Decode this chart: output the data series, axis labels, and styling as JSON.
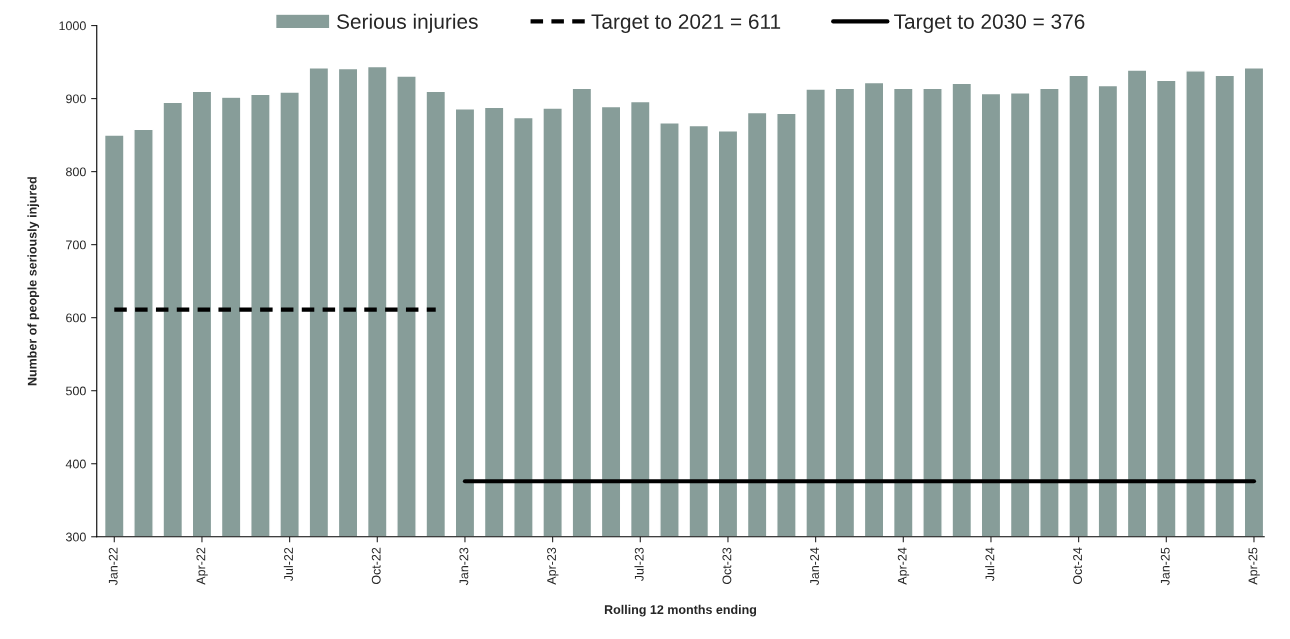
{
  "chart_data": {
    "type": "bar",
    "xlabel": "Rolling 12 months ending",
    "ylabel": "Number of people seriously injured",
    "categories": [
      "Jan-22",
      null,
      null,
      "Apr-22",
      null,
      null,
      "Jul-22",
      null,
      null,
      "Oct-22",
      null,
      null,
      "Jan-23",
      null,
      null,
      "Apr-23",
      null,
      null,
      "Jul-23",
      null,
      null,
      "Oct-23",
      null,
      null,
      "Jan-24",
      null,
      null,
      "Apr-24",
      null,
      null,
      "Jul-24",
      null,
      null,
      "Oct-24",
      null,
      null,
      "Jan-25",
      null,
      null,
      "Apr-25"
    ],
    "series": [
      {
        "name": "Serious injuries",
        "color": "#879d99",
        "values": [
          850,
          858,
          895,
          910,
          902,
          906,
          909,
          942,
          941,
          944,
          931,
          910,
          886,
          888,
          874,
          887,
          914,
          889,
          896,
          867,
          863,
          856,
          881,
          880,
          913,
          914,
          922,
          914,
          914,
          921,
          907,
          908,
          914,
          932,
          918,
          939,
          925,
          938,
          932,
          942
        ]
      },
      {
        "name": "Target to 2021 = 611",
        "type": "line",
        "line_style": "dashed",
        "color": "#000000",
        "values": [
          611,
          611,
          611,
          611,
          611,
          611,
          611,
          611,
          611,
          611,
          611,
          611,
          null,
          null,
          null,
          null,
          null,
          null,
          null,
          null,
          null,
          null,
          null,
          null,
          null,
          null,
          null,
          null,
          null,
          null,
          null,
          null,
          null,
          null,
          null,
          null,
          null,
          null,
          null,
          null
        ]
      },
      {
        "name": "Target to 2030 = 376",
        "type": "line",
        "line_style": "solid",
        "color": "#000000",
        "values": [
          null,
          null,
          null,
          null,
          null,
          null,
          null,
          null,
          null,
          null,
          null,
          null,
          376,
          376,
          376,
          376,
          376,
          376,
          376,
          376,
          376,
          376,
          376,
          376,
          376,
          376,
          376,
          376,
          376,
          376,
          376,
          376,
          376,
          376,
          376,
          376,
          376,
          376,
          376,
          376
        ]
      }
    ],
    "ylim": [
      300,
      1000
    ],
    "yticks": [
      300,
      400,
      500,
      600,
      700,
      800,
      900,
      1000
    ],
    "grid": false,
    "legend": "top"
  }
}
